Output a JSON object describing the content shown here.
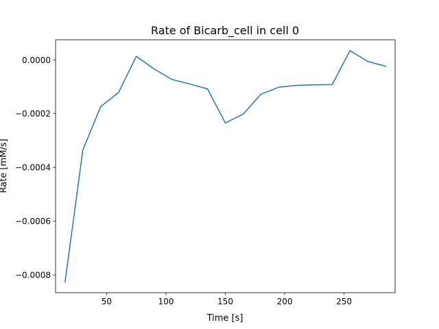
{
  "chart_data": {
    "type": "line",
    "title": "Rate of Bicarb_cell in cell 0",
    "xlabel": "Time [s]",
    "ylabel": "Rate [mM/s]",
    "xlim": [
      7,
      293
    ],
    "ylim": [
      -0.000866,
      7.46e-05
    ],
    "xticks": [
      50,
      100,
      150,
      200,
      250
    ],
    "xtick_labels": [
      "50",
      "100",
      "150",
      "200",
      "250"
    ],
    "yticks": [
      0.0,
      -0.0002,
      -0.0004,
      -0.0006,
      -0.0008
    ],
    "ytick_labels": [
      "0.0000",
      "−0.0002",
      "−0.0004",
      "−0.0006",
      "−0.0008"
    ],
    "grid": false,
    "series": [
      {
        "name": "Bicarb_cell",
        "color": "#1f77b4",
        "x": [
          15,
          30,
          45,
          60,
          75,
          90,
          105,
          120,
          135,
          150,
          165,
          180,
          195,
          210,
          225,
          240,
          255,
          270,
          285
        ],
        "y": [
          -0.000826,
          -0.000335,
          -0.000174,
          -0.000122,
          1.3e-05,
          -3.4e-05,
          -7.3e-05,
          -9e-05,
          -0.000108,
          -0.000235,
          -0.000202,
          -0.000128,
          -0.000102,
          -9.5e-05,
          -9.3e-05,
          -9.2e-05,
          3.4e-05,
          -6e-06,
          -2.4e-05
        ]
      }
    ]
  }
}
